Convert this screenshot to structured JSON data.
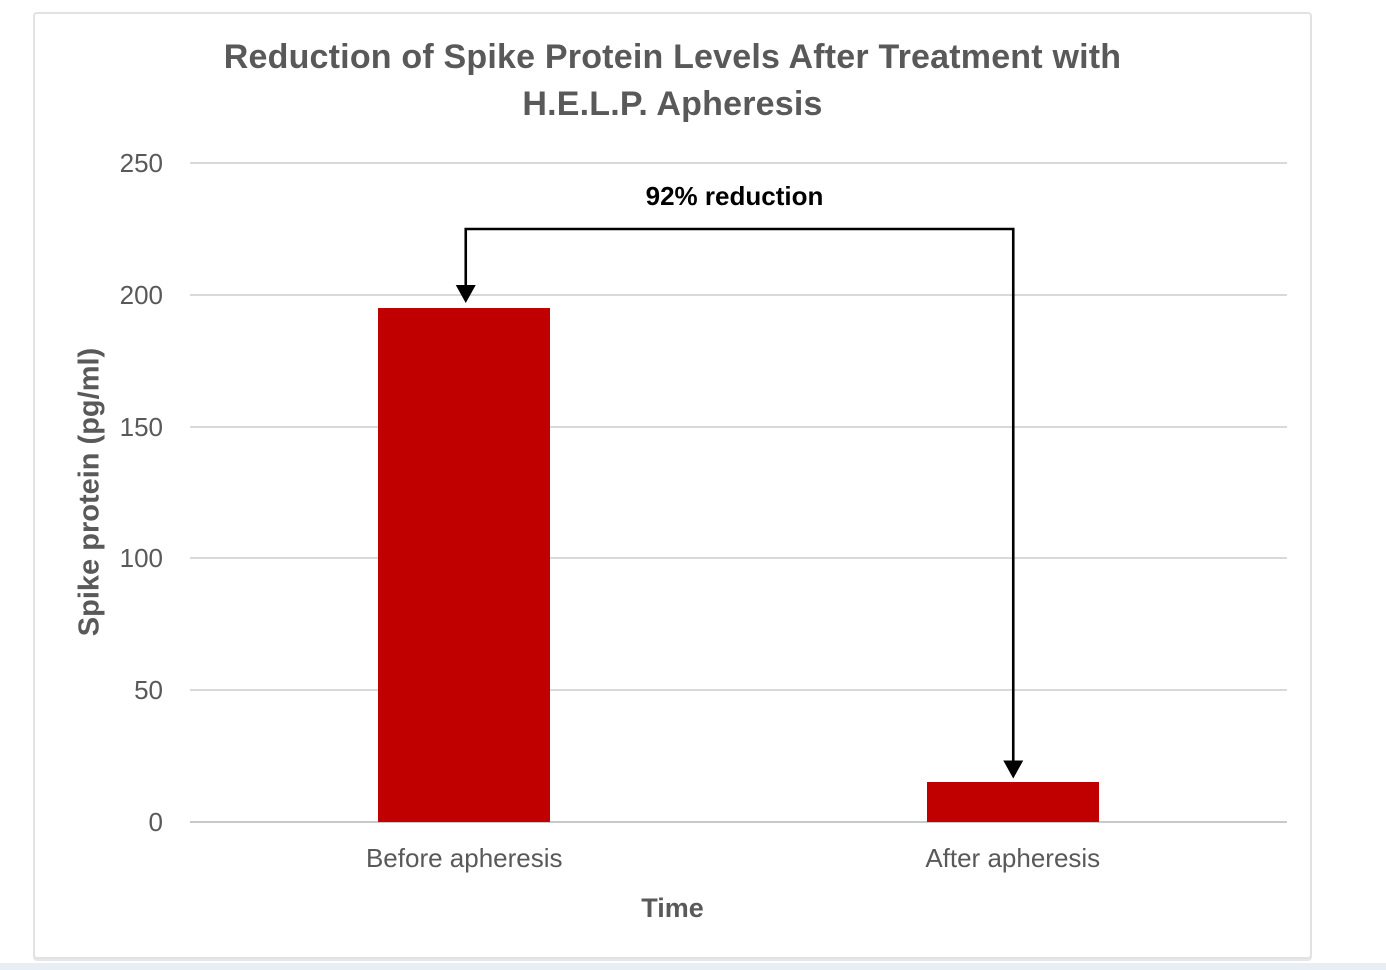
{
  "chart_data": {
    "type": "bar",
    "title_line1": "Reduction of Spike Protein Levels After Treatment with",
    "title_line2": "H.E.L.P. Apheresis",
    "categories": [
      "Before apheresis",
      "After apheresis"
    ],
    "values": [
      195,
      15
    ],
    "xlabel": "Time",
    "ylabel": "Spike protein (pg/ml)",
    "ylim": [
      0,
      250
    ],
    "yticks": [
      0,
      50,
      100,
      150,
      200,
      250
    ],
    "annotation": "92% reduction",
    "legend": "none",
    "grid": "horizontal",
    "colors": {
      "bar": "#c00000",
      "gridline": "#d9d9d9",
      "axis_text": "#595959",
      "title_text": "#595959",
      "annotation": "#000000",
      "frame_border": "#e2e2e2"
    }
  }
}
